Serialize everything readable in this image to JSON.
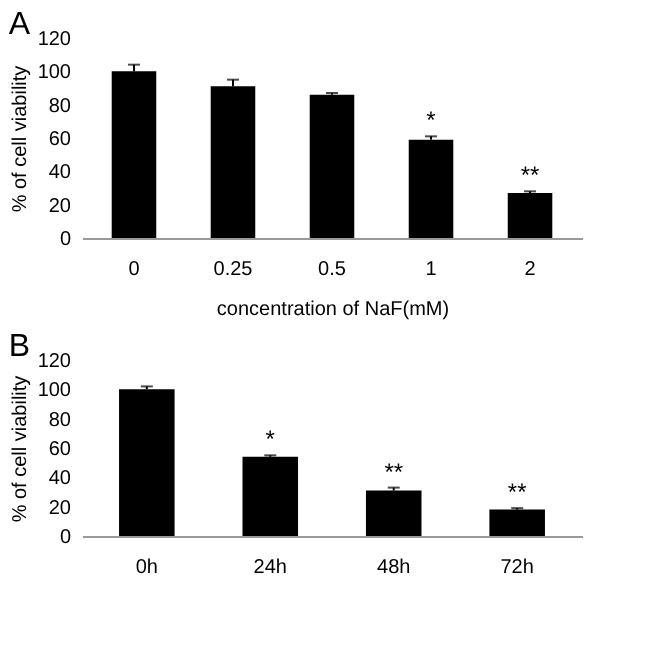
{
  "chart_data": [
    {
      "type": "bar",
      "title": "A",
      "xlabel": "concentration of NaF(mM)",
      "ylabel": "% of cell viability",
      "categories": [
        "0",
        "0.25",
        "0.5",
        "1",
        "2"
      ],
      "values": [
        100,
        91,
        86,
        59,
        27
      ],
      "errors": [
        4,
        4,
        1,
        2,
        1
      ],
      "color": "#000000",
      "ylim": [
        0,
        120
      ],
      "yticks": [
        0,
        20,
        40,
        60,
        80,
        100,
        120
      ],
      "grid": false,
      "annotations": [
        {
          "text": "*",
          "x": "1",
          "y": 61
        },
        {
          "text": "**",
          "x": "2",
          "y": 28
        }
      ]
    },
    {
      "type": "bar",
      "title": "B",
      "ylabel": "% of cell viability",
      "categories": [
        "0h",
        "24h",
        "48h",
        "72h"
      ],
      "values": [
        100,
        54,
        31,
        18
      ],
      "errors": [
        2,
        1,
        2,
        1
      ],
      "color": "#000000",
      "ylim": [
        0,
        120
      ],
      "yticks": [
        0,
        20,
        40,
        60,
        80,
        100,
        120
      ],
      "grid": false,
      "annotations": [
        {
          "text": "*",
          "x": "24h",
          "y": 55
        },
        {
          "text": "**",
          "x": "48h",
          "y": 33
        },
        {
          "text": "**",
          "x": "72h",
          "y": 19
        }
      ]
    }
  ]
}
